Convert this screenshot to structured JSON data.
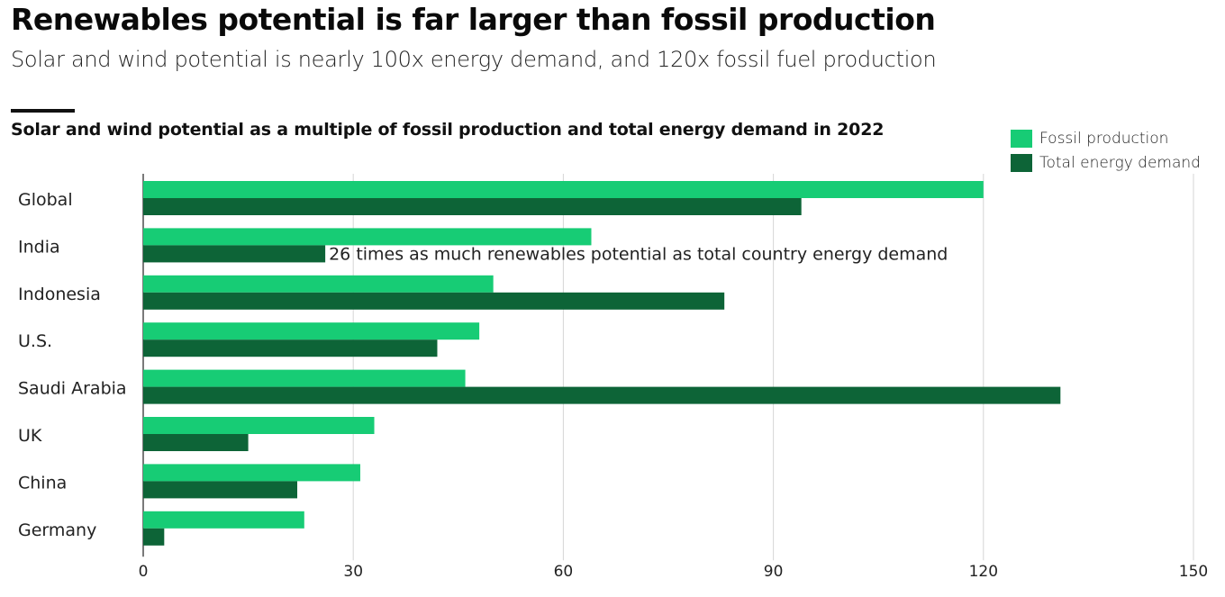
{
  "header": {
    "title": "Renewables potential is far larger than fossil production",
    "subtitle": "Solar and wind potential is nearly 100x energy demand, and 120x fossil fuel production"
  },
  "chart_data": {
    "type": "bar",
    "orientation": "horizontal",
    "title": "Solar and wind potential as a multiple of fossil production and total energy demand in 2022",
    "xlabel": "",
    "ylabel": "",
    "xlim": [
      0,
      150
    ],
    "xticks": [
      0,
      30,
      60,
      90,
      120,
      150
    ],
    "grid": true,
    "legend_position": "top-right",
    "categories": [
      "Global",
      "India",
      "Indonesia",
      "U.S.",
      "Saudi Arabia",
      "UK",
      "China",
      "Germany"
    ],
    "series": [
      {
        "name": "Fossil production",
        "color": "#17cc75",
        "values": [
          120,
          64,
          50,
          48,
          46,
          33,
          31,
          23
        ]
      },
      {
        "name": "Total energy demand",
        "color": "#0d6437",
        "values": [
          94,
          26,
          83,
          42,
          131,
          15,
          22,
          3
        ]
      }
    ],
    "annotations": [
      {
        "category": "India",
        "series": "Total energy demand",
        "value_text": "26",
        "text": "times as much renewables potential as total country energy demand"
      }
    ]
  }
}
